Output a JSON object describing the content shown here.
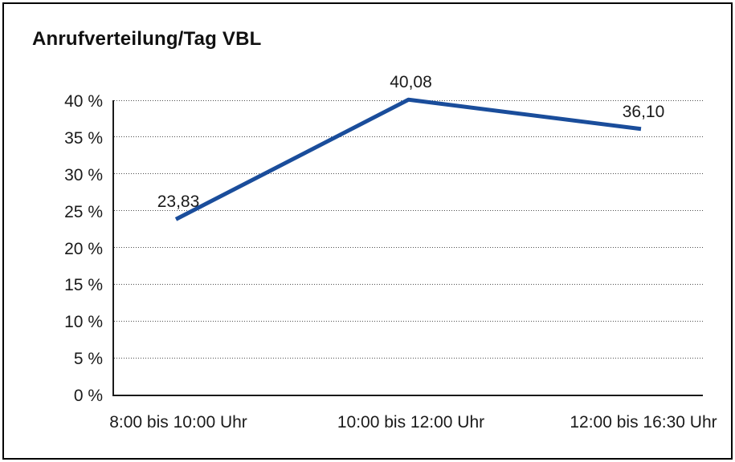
{
  "chart_data": {
    "type": "line",
    "title": "Anrufverteilung/Tag VBL",
    "categories": [
      "8:00 bis 10:00 Uhr",
      "10:00 bis 12:00 Uhr",
      "12:00 bis 16:30 Uhr"
    ],
    "values": [
      23.83,
      40.08,
      36.1
    ],
    "value_labels": [
      "23,83",
      "40,08",
      "36,10"
    ],
    "ylim": [
      0,
      40
    ],
    "ytick_step": 5,
    "ytick_labels": [
      "0 %",
      "5 %",
      "10 %",
      "15 %",
      "20 %",
      "25 %",
      "30 %",
      "35 %",
      "40 %"
    ],
    "xlabel": "",
    "ylabel": "",
    "grid": "horizontal-dotted",
    "legend": "none",
    "line_color": "#1a4d9b",
    "line_width": 5,
    "axis_color": "#1a1a1a",
    "grid_color": "#4d4d4d",
    "text_color": "#1a1a1a",
    "frame_border_color": "#000000",
    "background_color": "#ffffff"
  }
}
